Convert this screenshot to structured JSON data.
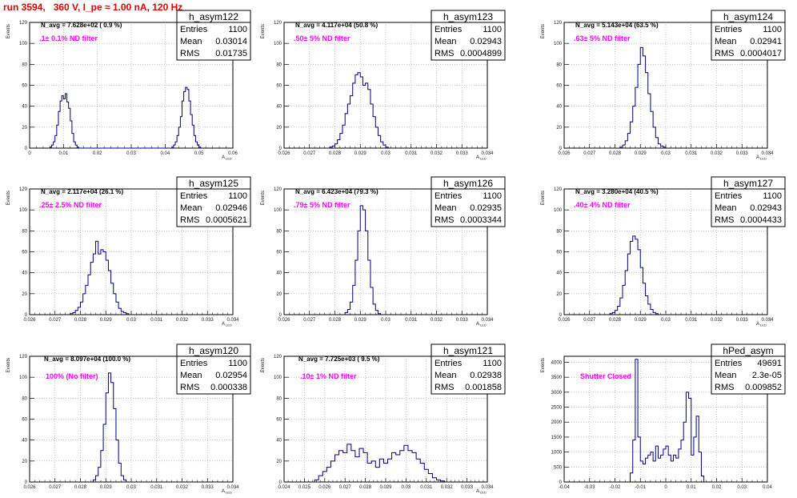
{
  "title": "run 3594,   360 V, I_pe ≈ 1.00 nA, 120 Hz",
  "colors": {
    "title": "#e00000",
    "histogram": "#000080",
    "annotation": "#ff00ff",
    "grid": "#a0a0a0"
  },
  "chart_data": [
    {
      "type": "histogram",
      "name": "h_asym122",
      "navg": "N_avg = 7.628e+02 ( 0.9 %)",
      "annotation": ".1± 0.1% ND filter",
      "stats": {
        "entries_label": "Entries",
        "entries": "1100",
        "mean_label": "Mean",
        "mean": "0.03014",
        "rms_label": "RMS",
        "rms": "0.01735"
      },
      "ylabel": "Events",
      "xlabel": "A",
      "xlabel_sub": "LED",
      "xlim": [
        0,
        0.06
      ],
      "ylim": [
        0,
        120
      ],
      "xticks": [
        {
          "v": 0,
          "label": "0"
        },
        {
          "v": 0.01,
          "label": "0.01"
        },
        {
          "v": 0.02,
          "label": "0.02"
        },
        {
          "v": 0.03,
          "label": "0.03"
        },
        {
          "v": 0.04,
          "label": "0.04"
        },
        {
          "v": 0.05,
          "label": "0.05"
        },
        {
          "v": 0.06,
          "label": "0.06"
        }
      ],
      "yticks": [
        0,
        20,
        40,
        60,
        80,
        100,
        120
      ],
      "bins": {
        "start": 0.006,
        "width": 0.0005,
        "values": [
          1,
          3,
          6,
          12,
          22,
          35,
          45,
          50,
          47,
          52,
          44,
          38,
          26,
          14,
          6,
          3,
          1,
          0,
          0,
          0,
          0,
          0,
          0,
          0,
          0,
          0,
          0,
          0,
          0,
          0,
          0,
          0,
          0,
          0,
          0,
          0,
          0,
          0,
          0,
          0,
          0,
          0,
          0,
          0,
          0,
          0,
          0,
          0,
          0,
          0,
          0,
          0,
          0,
          0,
          0,
          0,
          0,
          0,
          0,
          0,
          0,
          0,
          0,
          0,
          0,
          0,
          0,
          0,
          0,
          0,
          0,
          0,
          1,
          3,
          6,
          12,
          20,
          30,
          45,
          54,
          58,
          56,
          45,
          32,
          22,
          12,
          6,
          3,
          1
        ]
      }
    },
    {
      "type": "histogram",
      "name": "h_asym123",
      "navg": "N_avg = 4.117e+04 (50.8 %)",
      "annotation": ".50± 5% ND filter",
      "stats": {
        "entries_label": "Entries",
        "entries": "1100",
        "mean_label": "Mean",
        "mean": "0.02943",
        "rms_label": "RMS",
        "rms": "0.0004899"
      },
      "ylabel": "Events",
      "xlabel": "A",
      "xlabel_sub": "LED",
      "xlim": [
        0.026,
        0.034
      ],
      "ylim": [
        0,
        120
      ],
      "xticks": [
        {
          "v": 0.026,
          "label": "0.026"
        },
        {
          "v": 0.027,
          "label": "0.027"
        },
        {
          "v": 0.028,
          "label": "0.028"
        },
        {
          "v": 0.029,
          "label": "0.029"
        },
        {
          "v": 0.03,
          "label": "0.03"
        },
        {
          "v": 0.031,
          "label": "0.031"
        },
        {
          "v": 0.032,
          "label": "0.032"
        },
        {
          "v": 0.033,
          "label": "0.033"
        },
        {
          "v": 0.034,
          "label": "0.034"
        }
      ],
      "yticks": [
        0,
        20,
        40,
        60,
        80,
        100,
        120
      ],
      "bins": {
        "start": 0.0278,
        "width": 0.0001,
        "values": [
          1,
          2,
          4,
          8,
          14,
          22,
          33,
          42,
          50,
          62,
          70,
          72,
          68,
          60,
          62,
          56,
          42,
          30,
          20,
          12,
          6,
          3,
          1
        ]
      }
    },
    {
      "type": "histogram",
      "name": "h_asym124",
      "navg": "N_avg = 5.143e+04 (63.5 %)",
      "annotation": ".63± 5% ND filter",
      "stats": {
        "entries_label": "Entries",
        "entries": "1100",
        "mean_label": "Mean",
        "mean": "0.02941",
        "rms_label": "RMS",
        "rms": "0.0004017"
      },
      "ylabel": "Events",
      "xlabel": "A",
      "xlabel_sub": "LED",
      "xlim": [
        0.026,
        0.034
      ],
      "ylim": [
        0,
        120
      ],
      "xticks": [
        {
          "v": 0.026,
          "label": "0.026"
        },
        {
          "v": 0.027,
          "label": "0.027"
        },
        {
          "v": 0.028,
          "label": "0.028"
        },
        {
          "v": 0.029,
          "label": "0.029"
        },
        {
          "v": 0.03,
          "label": "0.03"
        },
        {
          "v": 0.031,
          "label": "0.031"
        },
        {
          "v": 0.032,
          "label": "0.032"
        },
        {
          "v": 0.033,
          "label": "0.033"
        },
        {
          "v": 0.034,
          "label": "0.034"
        }
      ],
      "yticks": [
        0,
        20,
        40,
        60,
        80,
        100,
        120
      ],
      "bins": {
        "start": 0.0282,
        "width": 0.0001,
        "values": [
          1,
          3,
          7,
          14,
          25,
          40,
          58,
          80,
          96,
          88,
          72,
          52,
          35,
          20,
          10,
          4,
          2,
          1
        ]
      }
    },
    {
      "type": "histogram",
      "name": "h_asym125",
      "navg": "N_avg = 2.117e+04 (26.1 %)",
      "annotation": ".25± 2.5% ND filter",
      "stats": {
        "entries_label": "Entries",
        "entries": "1100",
        "mean_label": "Mean",
        "mean": "0.02946",
        "rms_label": "RMS",
        "rms": "0.0005621"
      },
      "ylabel": "Events",
      "xlabel": "A",
      "xlabel_sub": "LED",
      "xlim": [
        0.026,
        0.034
      ],
      "ylim": [
        0,
        120
      ],
      "xticks": [
        {
          "v": 0.026,
          "label": "0.026"
        },
        {
          "v": 0.027,
          "label": "0.027"
        },
        {
          "v": 0.028,
          "label": "0.028"
        },
        {
          "v": 0.029,
          "label": "0.029"
        },
        {
          "v": 0.03,
          "label": "0.03"
        },
        {
          "v": 0.031,
          "label": "0.031"
        },
        {
          "v": 0.032,
          "label": "0.032"
        },
        {
          "v": 0.033,
          "label": "0.033"
        },
        {
          "v": 0.034,
          "label": "0.034"
        }
      ],
      "yticks": [
        0,
        20,
        40,
        60,
        80,
        100,
        120
      ],
      "bins": {
        "start": 0.0276,
        "width": 0.0001,
        "values": [
          1,
          2,
          4,
          7,
          12,
          20,
          28,
          38,
          50,
          58,
          70,
          58,
          62,
          60,
          52,
          42,
          30,
          20,
          12,
          6,
          3,
          2,
          1
        ]
      }
    },
    {
      "type": "histogram",
      "name": "h_asym126",
      "navg": "N_avg = 6.423e+04 (79.3 %)",
      "annotation": ".79± 5% ND filter",
      "stats": {
        "entries_label": "Entries",
        "entries": "1100",
        "mean_label": "Mean",
        "mean": "0.02935",
        "rms_label": "RMS",
        "rms": "0.0003344"
      },
      "ylabel": "Events",
      "xlabel": "A",
      "xlabel_sub": "LED",
      "xlim": [
        0.026,
        0.034
      ],
      "ylim": [
        0,
        120
      ],
      "xticks": [
        {
          "v": 0.026,
          "label": "0.026"
        },
        {
          "v": 0.027,
          "label": "0.027"
        },
        {
          "v": 0.028,
          "label": "0.028"
        },
        {
          "v": 0.029,
          "label": "0.029"
        },
        {
          "v": 0.03,
          "label": "0.03"
        },
        {
          "v": 0.031,
          "label": "0.031"
        },
        {
          "v": 0.032,
          "label": "0.032"
        },
        {
          "v": 0.033,
          "label": "0.033"
        },
        {
          "v": 0.034,
          "label": "0.034"
        }
      ],
      "yticks": [
        0,
        20,
        40,
        60,
        80,
        100,
        120
      ],
      "bins": {
        "start": 0.0284,
        "width": 0.0001,
        "values": [
          2,
          5,
          12,
          28,
          52,
          80,
          104,
          100,
          80,
          52,
          26,
          10,
          4,
          1
        ]
      }
    },
    {
      "type": "histogram",
      "name": "h_asym127",
      "navg": "N_avg = 3.280e+04 (40.5 %)",
      "annotation": ".40± 4% ND filter",
      "stats": {
        "entries_label": "Entries",
        "entries": "1100",
        "mean_label": "Mean",
        "mean": "0.02943",
        "rms_label": "RMS",
        "rms": "0.0004433"
      },
      "ylabel": "Events",
      "xlabel": "A",
      "xlabel_sub": "LED",
      "xlim": [
        0.026,
        0.034
      ],
      "ylim": [
        0,
        120
      ],
      "xticks": [
        {
          "v": 0.026,
          "label": "0.026"
        },
        {
          "v": 0.027,
          "label": "0.027"
        },
        {
          "v": 0.028,
          "label": "0.028"
        },
        {
          "v": 0.029,
          "label": "0.029"
        },
        {
          "v": 0.03,
          "label": "0.03"
        },
        {
          "v": 0.031,
          "label": "0.031"
        },
        {
          "v": 0.032,
          "label": "0.032"
        },
        {
          "v": 0.033,
          "label": "0.033"
        },
        {
          "v": 0.034,
          "label": "0.034"
        }
      ],
      "yticks": [
        0,
        20,
        40,
        60,
        80,
        100,
        120
      ],
      "bins": {
        "start": 0.0278,
        "width": 0.0001,
        "values": [
          1,
          2,
          4,
          8,
          16,
          28,
          42,
          58,
          70,
          75,
          72,
          62,
          45,
          30,
          18,
          10,
          5,
          2,
          1
        ]
      }
    },
    {
      "type": "histogram",
      "name": "h_asym120",
      "navg": "N_avg = 8.097e+04 (100.0 %)",
      "annotation": "100% (No filter)",
      "stats": {
        "entries_label": "Entries",
        "entries": "1100",
        "mean_label": "Mean",
        "mean": "0.02954",
        "rms_label": "RMS",
        "rms": "0.000338"
      },
      "ylabel": "Events",
      "xlabel": "A",
      "xlabel_sub": "LED",
      "xlim": [
        0.026,
        0.034
      ],
      "ylim": [
        0,
        120
      ],
      "xticks": [
        {
          "v": 0.026,
          "label": "0.026"
        },
        {
          "v": 0.027,
          "label": "0.027"
        },
        {
          "v": 0.028,
          "label": "0.028"
        },
        {
          "v": 0.029,
          "label": "0.029"
        },
        {
          "v": 0.03,
          "label": "0.03"
        },
        {
          "v": 0.031,
          "label": "0.031"
        },
        {
          "v": 0.032,
          "label": "0.032"
        },
        {
          "v": 0.033,
          "label": "0.033"
        },
        {
          "v": 0.034,
          "label": "0.034"
        }
      ],
      "yticks": [
        0,
        20,
        40,
        60,
        80,
        100,
        120
      ],
      "bins": {
        "start": 0.0285,
        "width": 0.0001,
        "values": [
          2,
          6,
          14,
          30,
          55,
          85,
          104,
          95,
          70,
          40,
          18,
          6,
          2
        ]
      }
    },
    {
      "type": "histogram",
      "name": "h_asym121",
      "navg": "N_avg = 7.725e+03 ( 9.5 %)",
      "annotation": ".10± 1% ND filter",
      "stats": {
        "entries_label": "Entries",
        "entries": "1100",
        "mean_label": "Mean",
        "mean": "0.02938",
        "rms_label": "RMS",
        "rms": "0.001858"
      },
      "ylabel": "Events",
      "xlabel": "A",
      "xlabel_sub": "LED",
      "xlim": [
        0.024,
        0.034
      ],
      "ylim": [
        0,
        120
      ],
      "xticks": [
        {
          "v": 0.024,
          "label": "0.024"
        },
        {
          "v": 0.025,
          "label": "0.025"
        },
        {
          "v": 0.026,
          "label": "0.026"
        },
        {
          "v": 0.027,
          "label": "0.027"
        },
        {
          "v": 0.028,
          "label": "0.028"
        },
        {
          "v": 0.029,
          "label": "0.029"
        },
        {
          "v": 0.03,
          "label": "0.03"
        },
        {
          "v": 0.031,
          "label": "0.031"
        },
        {
          "v": 0.032,
          "label": "0.032"
        },
        {
          "v": 0.033,
          "label": "0.033"
        },
        {
          "v": 0.034,
          "label": "0.034"
        }
      ],
      "yticks": [
        0,
        20,
        40,
        60,
        80,
        100,
        120
      ],
      "bins": {
        "start": 0.0255,
        "width": 0.0002,
        "values": [
          2,
          6,
          10,
          14,
          20,
          26,
          30,
          28,
          36,
          30,
          24,
          32,
          28,
          18,
          20,
          14,
          22,
          18,
          22,
          28,
          26,
          30,
          35,
          30,
          28,
          22,
          18,
          12,
          8,
          4,
          2,
          1
        ]
      }
    },
    {
      "type": "histogram",
      "name": "hPed_asym",
      "navg": "",
      "annotation": "Shutter Closed",
      "stats": {
        "entries_label": "Entries",
        "entries": "49691",
        "mean_label": "Mean",
        "mean": "2.3e-05",
        "rms_label": "RMS",
        "rms": "0.009852"
      },
      "ylabel": "Events",
      "xlabel": "",
      "xlabel_sub": "",
      "xlim": [
        -0.04,
        0.04
      ],
      "ylim": [
        0,
        4200
      ],
      "xticks": [
        {
          "v": -0.04,
          "label": "-0.04"
        },
        {
          "v": -0.03,
          "label": "-0.03"
        },
        {
          "v": -0.02,
          "label": "-0.02"
        },
        {
          "v": -0.01,
          "label": "-0.01"
        },
        {
          "v": 0,
          "label": "0"
        },
        {
          "v": 0.01,
          "label": "0.01"
        },
        {
          "v": 0.02,
          "label": "0.02"
        },
        {
          "v": 0.03,
          "label": "0.03"
        },
        {
          "v": 0.04,
          "label": "0.04"
        }
      ],
      "yticks": [
        0,
        500,
        1000,
        1500,
        2000,
        2500,
        3000,
        3500,
        4000
      ],
      "bins": {
        "start": -0.014,
        "width": 0.001,
        "values": [
          300,
          1400,
          4100,
          1500,
          700,
          600,
          800,
          900,
          1000,
          700,
          1200,
          800,
          900,
          1100,
          1200,
          900,
          700,
          900,
          800,
          1100,
          1400,
          2000,
          3000,
          2800,
          900,
          1500,
          2200,
          1000,
          200
        ]
      }
    }
  ]
}
